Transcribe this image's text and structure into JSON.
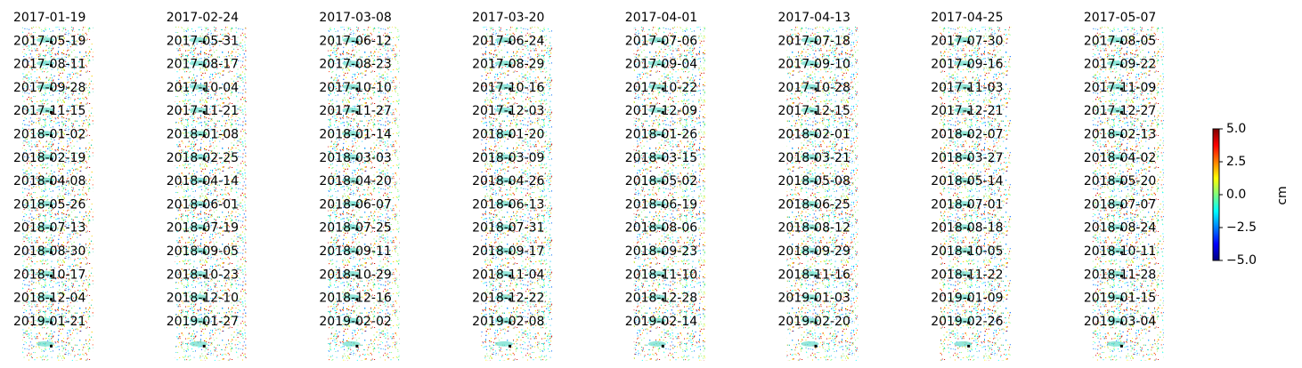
{
  "panels": {
    "dates": [
      "2017-01-19",
      "2017-02-24",
      "2017-03-08",
      "2017-03-20",
      "2017-04-01",
      "2017-04-13",
      "2017-04-25",
      "2017-05-07",
      "2017-05-19",
      "2017-05-31",
      "2017-06-12",
      "2017-06-24",
      "2017-07-06",
      "2017-07-18",
      "2017-07-30",
      "2017-08-05",
      "2017-08-11",
      "2017-08-17",
      "2017-08-23",
      "2017-08-29",
      "2017-09-04",
      "2017-09-10",
      "2017-09-16",
      "2017-09-22",
      "2017-09-28",
      "2017-10-04",
      "2017-10-10",
      "2017-10-16",
      "2017-10-22",
      "2017-10-28",
      "2017-11-03",
      "2017-11-09",
      "2017-11-15",
      "2017-11-21",
      "2017-11-27",
      "2017-12-03",
      "2017-12-09",
      "2017-12-15",
      "2017-12-21",
      "2017-12-27",
      "2018-01-02",
      "2018-01-08",
      "2018-01-14",
      "2018-01-20",
      "2018-01-26",
      "2018-02-01",
      "2018-02-07",
      "2018-02-13",
      "2018-02-19",
      "2018-02-25",
      "2018-03-03",
      "2018-03-09",
      "2018-03-15",
      "2018-03-21",
      "2018-03-27",
      "2018-04-02",
      "2018-04-08",
      "2018-04-14",
      "2018-04-20",
      "2018-04-26",
      "2018-05-02",
      "2018-05-08",
      "2018-05-14",
      "2018-05-20",
      "2018-05-26",
      "2018-06-01",
      "2018-06-07",
      "2018-06-13",
      "2018-06-19",
      "2018-06-25",
      "2018-07-01",
      "2018-07-07",
      "2018-07-13",
      "2018-07-19",
      "2018-07-25",
      "2018-07-31",
      "2018-08-06",
      "2018-08-12",
      "2018-08-18",
      "2018-08-24",
      "2018-08-30",
      "2018-09-05",
      "2018-09-11",
      "2018-09-17",
      "2018-09-23",
      "2018-09-29",
      "2018-10-05",
      "2018-10-11",
      "2018-10-17",
      "2018-10-23",
      "2018-10-29",
      "2018-11-04",
      "2018-11-10",
      "2018-11-16",
      "2018-11-22",
      "2018-11-28",
      "2018-12-04",
      "2018-12-10",
      "2018-12-16",
      "2018-12-22",
      "2018-12-28",
      "2019-01-03",
      "2019-01-09",
      "2019-01-15",
      "2019-01-21",
      "2019-01-27",
      "2019-02-02",
      "2019-02-08",
      "2019-02-14",
      "2019-02-20",
      "2019-02-26",
      "2019-03-04"
    ]
  },
  "colorbar": {
    "label": "cm",
    "lim": [
      -5,
      5
    ],
    "ticks": [
      {
        "value": 5,
        "label": "5.0"
      },
      {
        "value": 2.5,
        "label": "2.5"
      },
      {
        "value": 0,
        "label": "0.0"
      },
      {
        "value": -2.5,
        "label": "−2.5"
      },
      {
        "value": -5,
        "label": "−5.0"
      }
    ]
  }
}
